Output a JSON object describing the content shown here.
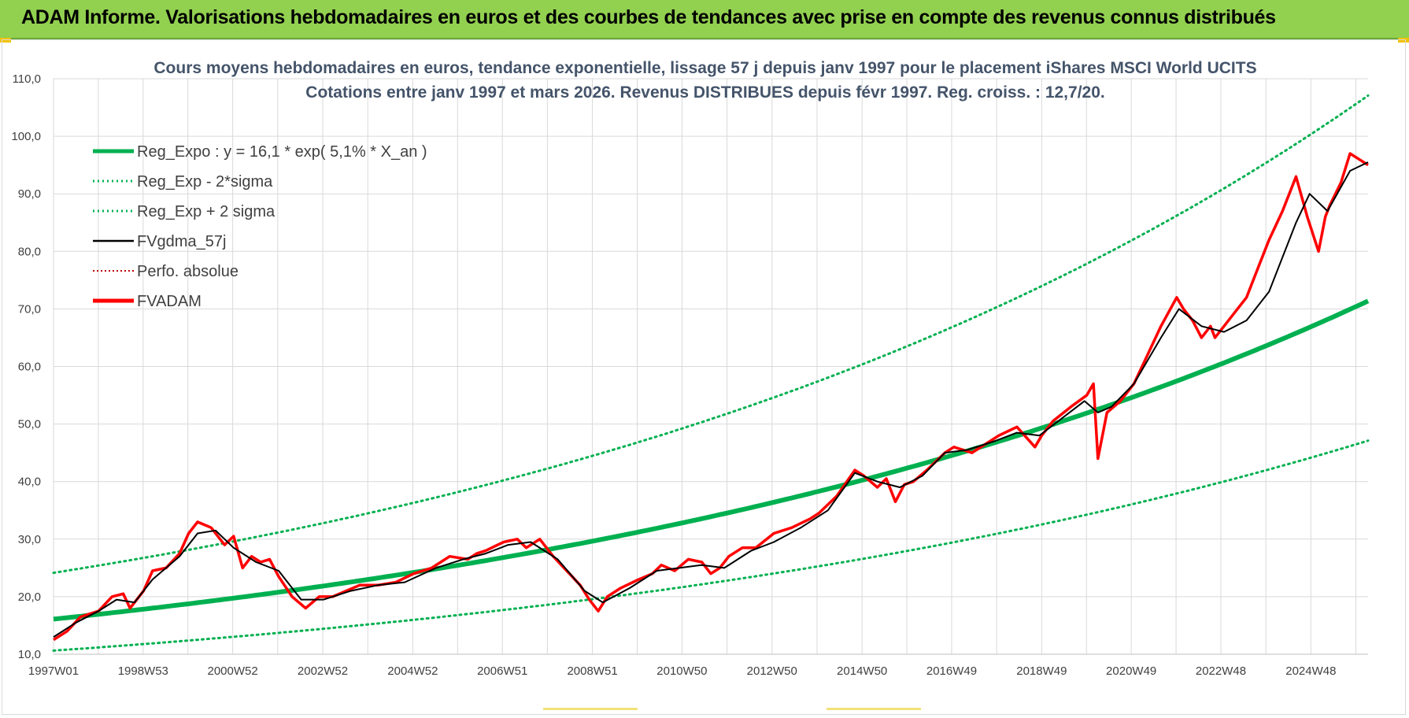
{
  "banner": {
    "title": "ADAM Informe. Valorisations hebdomadaires en euros et des courbes de tendances avec prise en compte des revenus connus distribués",
    "color": "#92d050"
  },
  "chart_data": {
    "type": "line",
    "title_line1": "Cours moyens hebdomadaires en euros, tendance exponentielle, lissage 57 j depuis janv 1997 pour le placement iShares MSCI World UCITS",
    "title_line2": "Cotations entre janv 1997 et mars 2026. Revenus DISTRIBUES depuis févr 1997. Reg. croiss. : 12,7/20.",
    "ylim": [
      10,
      110
    ],
    "yticks": [
      "10,0",
      "20,0",
      "30,0",
      "40,0",
      "50,0",
      "60,0",
      "70,0",
      "80,0",
      "90,0",
      "100,0",
      "110,0"
    ],
    "xlim": [
      1997.0,
      2026.2
    ],
    "xticks": [
      {
        "label": "1997W01",
        "x": 1997.0
      },
      {
        "label": "1998W53",
        "x": 1998.99
      },
      {
        "label": "2000W52",
        "x": 2000.98
      },
      {
        "label": "2002W52",
        "x": 2002.98
      },
      {
        "label": "2004W52",
        "x": 2004.98
      },
      {
        "label": "2006W51",
        "x": 2006.97
      },
      {
        "label": "2008W51",
        "x": 2008.97
      },
      {
        "label": "2010W50",
        "x": 2010.96
      },
      {
        "label": "2012W50",
        "x": 2012.96
      },
      {
        "label": "2014W50",
        "x": 2014.96
      },
      {
        "label": "2016W49",
        "x": 2016.95
      },
      {
        "label": "2018W49",
        "x": 2018.95
      },
      {
        "label": "2020W49",
        "x": 2020.94
      },
      {
        "label": "2022W48",
        "x": 2022.93
      },
      {
        "label": "2024W48",
        "x": 2024.93
      }
    ],
    "grid": true,
    "legend_position": "top-left",
    "legend": [
      {
        "label": "Reg_Expo : y = 16,1 * exp( 5,1% *  X_an )",
        "color": "#00b050",
        "style": "solid-thick"
      },
      {
        "label": "Reg_Exp - 2*sigma",
        "color": "#00b050",
        "style": "dotted"
      },
      {
        "label": "Reg_Exp + 2 sigma",
        "color": "#00b050",
        "style": "dotted"
      },
      {
        "label": "FVgdma_57j",
        "color": "#000000",
        "style": "solid"
      },
      {
        "label": "Perfo. absolue",
        "color": "#c00000",
        "style": "dotted-thin"
      },
      {
        "label": "FVADAM",
        "color": "#ff0000",
        "style": "solid-thick"
      }
    ],
    "regression": {
      "a": 16.1,
      "b": 0.051,
      "lower_factor": 0.66,
      "upper_factor": 1.5
    },
    "series": [
      {
        "name": "FVADAM",
        "color": "#ff0000",
        "x": [
          1997.0,
          1997.3,
          1997.6,
          1997.8,
          1998.0,
          1998.3,
          1998.55,
          1998.7,
          1998.85,
          1999.0,
          1999.2,
          1999.5,
          1999.8,
          2000.0,
          2000.2,
          2000.5,
          2000.8,
          2001.0,
          2001.2,
          2001.4,
          2001.6,
          2001.8,
          2002.0,
          2002.3,
          2002.6,
          2002.9,
          2003.2,
          2003.5,
          2003.8,
          2004.2,
          2004.6,
          2005.0,
          2005.4,
          2005.8,
          2006.2,
          2006.4,
          2006.6,
          2007.0,
          2007.3,
          2007.5,
          2007.8,
          2008.1,
          2008.4,
          2008.7,
          2008.9,
          2009.1,
          2009.3,
          2009.6,
          2010.0,
          2010.3,
          2010.5,
          2010.8,
          2011.1,
          2011.4,
          2011.6,
          2011.8,
          2012.0,
          2012.3,
          2012.6,
          2013.0,
          2013.4,
          2013.8,
          2014.0,
          2014.4,
          2014.8,
          2015.0,
          2015.3,
          2015.5,
          2015.7,
          2015.9,
          2016.1,
          2016.4,
          2016.8,
          2017.0,
          2017.4,
          2017.8,
          2018.0,
          2018.4,
          2018.8,
          2018.95,
          2019.2,
          2019.6,
          2019.95,
          2020.1,
          2020.2,
          2020.4,
          2020.7,
          2021.0,
          2021.3,
          2021.6,
          2021.95,
          2022.1,
          2022.3,
          2022.5,
          2022.7,
          2022.8,
          2023.0,
          2023.3,
          2023.5,
          2023.7,
          2024.0,
          2024.3,
          2024.6,
          2024.85,
          2025.1,
          2025.25,
          2025.35,
          2025.6,
          2025.8,
          2026.0,
          2026.2
        ],
        "y": [
          12.5,
          14.0,
          16.5,
          17.0,
          17.5,
          20.0,
          20.5,
          18.0,
          19.5,
          21.0,
          24.5,
          25.0,
          27.5,
          31.0,
          33.0,
          32.0,
          29.0,
          30.5,
          25.0,
          27.0,
          26.0,
          26.5,
          23.5,
          20.0,
          18.0,
          20.0,
          20.0,
          21.0,
          22.0,
          22.0,
          22.5,
          24.0,
          25.0,
          27.0,
          26.5,
          27.5,
          28.0,
          29.5,
          30.0,
          28.5,
          30.0,
          27.0,
          24.5,
          22.0,
          19.5,
          17.5,
          20.0,
          21.5,
          23.0,
          24.0,
          25.5,
          24.5,
          26.5,
          26.0,
          24.0,
          25.0,
          27.0,
          28.5,
          28.5,
          31.0,
          32.0,
          33.5,
          34.5,
          37.5,
          42.0,
          41.0,
          39.0,
          40.5,
          36.5,
          39.5,
          40.0,
          42.0,
          45.0,
          46.0,
          45.0,
          47.0,
          48.0,
          49.5,
          46.0,
          48.0,
          50.5,
          53.0,
          55.0,
          57.0,
          44.0,
          52.0,
          54.0,
          57.0,
          62.0,
          67.0,
          72.0,
          70.0,
          68.0,
          65.0,
          67.0,
          65.0,
          67.0,
          70.0,
          72.0,
          76.0,
          82.0,
          87.0,
          93.0,
          86.0,
          80.0,
          86.0,
          88.0,
          92.0,
          97.0,
          96.0,
          95.0
        ]
      },
      {
        "name": "FVgdma_57j",
        "color": "#000000",
        "x": [
          1997.0,
          1997.5,
          1998.0,
          1998.4,
          1998.8,
          1999.2,
          1999.8,
          2000.2,
          2000.6,
          2001.0,
          2001.5,
          2002.0,
          2002.5,
          2003.0,
          2003.6,
          2004.2,
          2004.8,
          2005.5,
          2006.1,
          2006.6,
          2007.1,
          2007.6,
          2008.2,
          2008.8,
          2009.2,
          2009.8,
          2010.4,
          2010.9,
          2011.4,
          2011.9,
          2012.5,
          2013.0,
          2013.6,
          2014.2,
          2014.8,
          2015.3,
          2015.8,
          2016.3,
          2016.8,
          2017.3,
          2017.9,
          2018.4,
          2018.9,
          2019.4,
          2019.9,
          2020.2,
          2020.5,
          2021.0,
          2021.6,
          2022.0,
          2022.5,
          2023.0,
          2023.5,
          2024.0,
          2024.6,
          2024.9,
          2025.3,
          2025.8,
          2026.2
        ],
        "y": [
          13.0,
          15.5,
          17.5,
          19.5,
          19.0,
          23.0,
          27.0,
          31.0,
          31.5,
          28.5,
          26.0,
          24.5,
          19.5,
          19.5,
          21.0,
          22.0,
          22.5,
          25.0,
          26.5,
          27.5,
          29.0,
          29.5,
          26.5,
          21.0,
          19.0,
          21.5,
          24.5,
          25.0,
          25.5,
          25.0,
          28.0,
          29.5,
          32.0,
          35.0,
          41.5,
          40.0,
          39.0,
          41.0,
          45.0,
          45.5,
          47.0,
          48.5,
          48.0,
          51.0,
          54.0,
          52.0,
          53.0,
          57.0,
          65.0,
          70.0,
          67.0,
          66.0,
          68.0,
          73.0,
          85.0,
          90.0,
          87.0,
          94.0,
          95.5
        ]
      }
    ]
  }
}
